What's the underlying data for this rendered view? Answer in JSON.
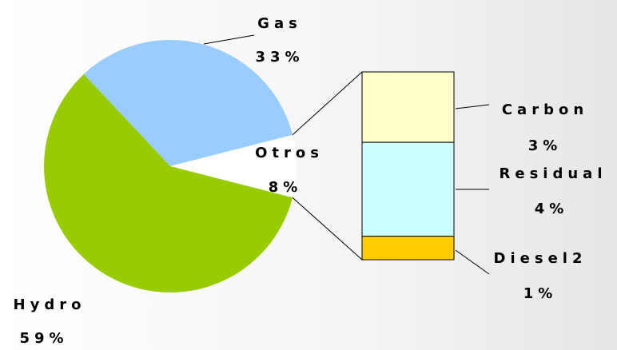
{
  "chart_data": {
    "type": "pie",
    "categories": [
      "Gas",
      "Otros",
      "Hydro"
    ],
    "values": [
      33,
      8,
      59
    ],
    "value_labels": [
      "33%",
      "8%",
      "59%"
    ],
    "colors": [
      "#99ccff",
      "#ffffff",
      "#99cc00"
    ],
    "breakdown": {
      "categories": [
        "Carbon",
        "Residual",
        "Diesel2"
      ],
      "values": [
        3,
        4,
        1
      ],
      "value_labels": [
        "3%",
        "4%",
        "1%"
      ],
      "colors": [
        "#ffffcc",
        "#ccffff",
        "#ffcc00"
      ]
    }
  }
}
